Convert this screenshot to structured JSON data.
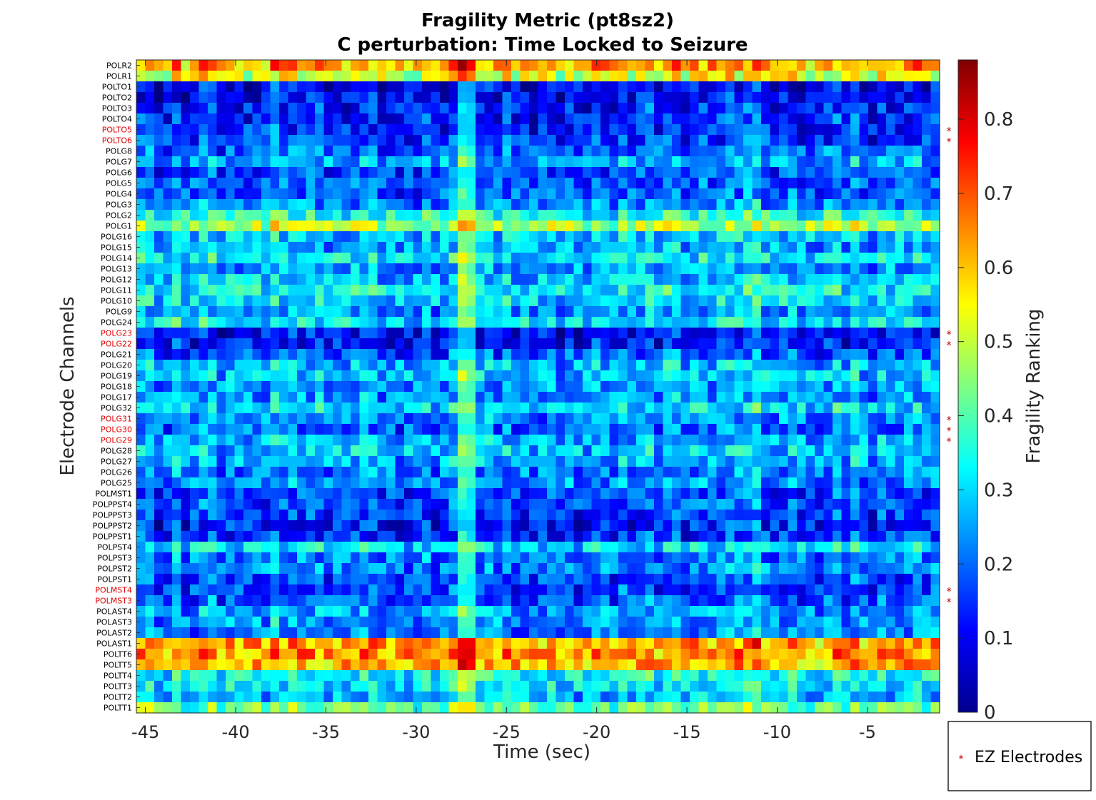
{
  "chart_data": {
    "type": "heatmap",
    "title": "Fragility Metric (pt8sz2)",
    "subtitle": "C perturbation:  Time Locked to Seizure",
    "xlabel": "Time (sec)",
    "ylabel": "Electrode Channels",
    "colorbar_label": "Fragility Ranking",
    "colormap": "jet",
    "xlim": [
      -45.5,
      -1
    ],
    "n_windows": 90,
    "x_ticks": [
      -45,
      -40,
      -35,
      -30,
      -25,
      -20,
      -15,
      -10,
      -5
    ],
    "x_tick_labels": [
      "-45",
      "-40",
      "-35",
      "-30",
      "-25",
      "-20",
      "-15",
      "-10",
      "-5"
    ],
    "clim": [
      0,
      0.88
    ],
    "colorbar_ticks": [
      0,
      0.1,
      0.2,
      0.3,
      0.4,
      0.5,
      0.6,
      0.7,
      0.8
    ],
    "colorbar_tick_labels": [
      "0",
      "0.1",
      "0.2",
      "0.3",
      "0.4",
      "0.5",
      "0.6",
      "0.7",
      "0.8"
    ],
    "seizure_artifact_time_sec": -27.5,
    "channels": [
      "POLR2",
      "POLR1",
      "POLTO1",
      "POLTO2",
      "POLTO3",
      "POLTO4",
      "POLTO5",
      "POLTO6",
      "POLG8",
      "POLG7",
      "POLG6",
      "POLG5",
      "POLG4",
      "POLG3",
      "POLG2",
      "POLG1",
      "POLG16",
      "POLG15",
      "POLG14",
      "POLG13",
      "POLG12",
      "POLG11",
      "POLG10",
      "POLG9",
      "POLG24",
      "POLG23",
      "POLG22",
      "POLG21",
      "POLG20",
      "POLG19",
      "POLG18",
      "POLG17",
      "POLG32",
      "POLG31",
      "POLG30",
      "POLG29",
      "POLG28",
      "POLG27",
      "POLG26",
      "POLG25",
      "POLMST1",
      "POLPPST4",
      "POLPPST3",
      "POLPPST2",
      "POLPPST1",
      "POLPST4",
      "POLPST3",
      "POLPST2",
      "POLPST1",
      "POLMST4",
      "POLMST3",
      "POLAST4",
      "POLAST3",
      "POLAST2",
      "POLAST1",
      "POLTT6",
      "POLTT5",
      "POLTT4",
      "POLTT3",
      "POLTT2",
      "POLTT1"
    ],
    "ez_channels": [
      "POLTO5",
      "POLTO6",
      "POLG23",
      "POLG22",
      "POLG31",
      "POLG30",
      "POLG29",
      "POLMST4",
      "POLMST3"
    ],
    "channel_mean_fragility": [
      0.62,
      0.52,
      0.1,
      0.11,
      0.14,
      0.14,
      0.14,
      0.15,
      0.2,
      0.26,
      0.17,
      0.19,
      0.19,
      0.22,
      0.35,
      0.47,
      0.28,
      0.26,
      0.32,
      0.25,
      0.28,
      0.33,
      0.3,
      0.24,
      0.32,
      0.12,
      0.12,
      0.18,
      0.27,
      0.28,
      0.24,
      0.24,
      0.3,
      0.23,
      0.2,
      0.26,
      0.28,
      0.26,
      0.22,
      0.23,
      0.16,
      0.17,
      0.16,
      0.13,
      0.15,
      0.3,
      0.22,
      0.22,
      0.17,
      0.17,
      0.19,
      0.25,
      0.24,
      0.22,
      0.63,
      0.64,
      0.62,
      0.33,
      0.31,
      0.26,
      0.42
    ],
    "legend": {
      "label": "EZ Electrodes",
      "marker": "*",
      "marker_color": "#c00000",
      "placement": "outside-lower-right"
    }
  }
}
